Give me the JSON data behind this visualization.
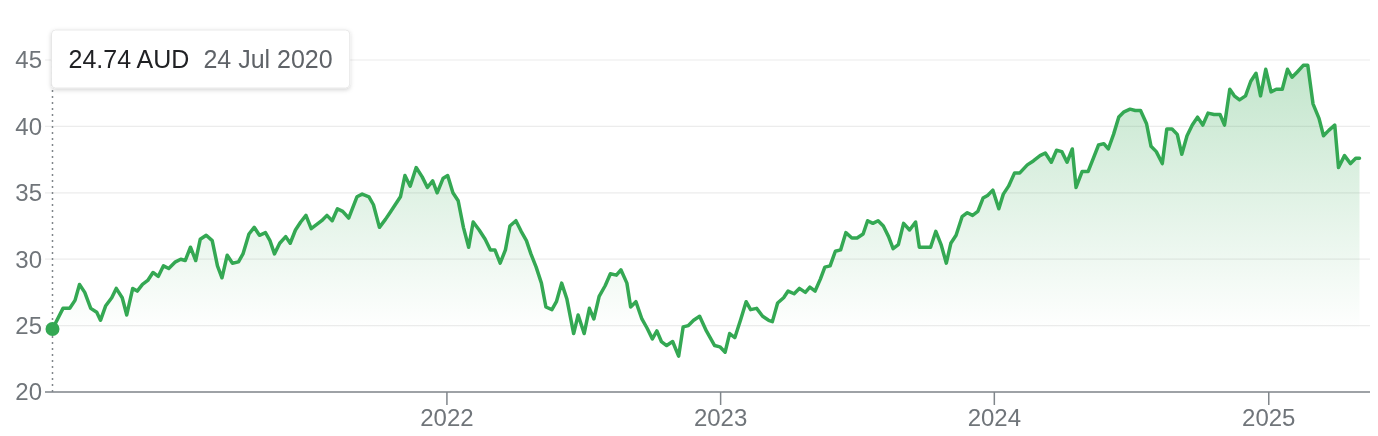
{
  "chart_data": {
    "type": "area",
    "color": "#34a853",
    "x": [
      "2020-07-24",
      "2020-08-07",
      "2020-08-16",
      "2020-08-23",
      "2020-08-29",
      "2020-09-05",
      "2020-09-13",
      "2020-09-21",
      "2020-09-26",
      "2020-10-03",
      "2020-10-11",
      "2020-10-17",
      "2020-10-25",
      "2020-10-31",
      "2020-11-08",
      "2020-11-14",
      "2020-11-21",
      "2020-11-28",
      "2020-12-05",
      "2020-12-12",
      "2020-12-19",
      "2020-12-26",
      "2021-01-04",
      "2021-01-11",
      "2021-01-17",
      "2021-01-24",
      "2021-01-31",
      "2021-02-06",
      "2021-02-14",
      "2021-02-22",
      "2021-03-01",
      "2021-03-07",
      "2021-03-14",
      "2021-03-21",
      "2021-03-29",
      "2021-04-04",
      "2021-04-12",
      "2021-04-19",
      "2021-04-26",
      "2021-05-04",
      "2021-05-10",
      "2021-05-16",
      "2021-05-23",
      "2021-05-31",
      "2021-06-06",
      "2021-06-13",
      "2021-06-20",
      "2021-06-27",
      "2021-07-04",
      "2021-07-11",
      "2021-07-18",
      "2021-07-25",
      "2021-08-01",
      "2021-08-08",
      "2021-08-15",
      "2021-08-23",
      "2021-09-03",
      "2021-09-10",
      "2021-09-19",
      "2021-09-25",
      "2021-10-03",
      "2021-10-11",
      "2021-10-17",
      "2021-10-24",
      "2021-10-31",
      "2021-11-06",
      "2021-11-13",
      "2021-11-21",
      "2021-11-29",
      "2021-12-06",
      "2021-12-13",
      "2021-12-19",
      "2021-12-27",
      "2022-01-02",
      "2022-01-09",
      "2022-01-16",
      "2022-01-23",
      "2022-01-30",
      "2022-02-05",
      "2022-02-13",
      "2022-02-21",
      "2022-02-28",
      "2022-03-06",
      "2022-03-13",
      "2022-03-20",
      "2022-03-26",
      "2022-04-03",
      "2022-04-10",
      "2022-04-17",
      "2022-04-23",
      "2022-04-30",
      "2022-05-07",
      "2022-05-13",
      "2022-05-21",
      "2022-05-27",
      "2022-06-03",
      "2022-06-10",
      "2022-06-19",
      "2022-06-25",
      "2022-07-03",
      "2022-07-10",
      "2022-07-16",
      "2022-07-23",
      "2022-07-31",
      "2022-08-07",
      "2022-08-15",
      "2022-08-21",
      "2022-08-29",
      "2022-09-03",
      "2022-09-10",
      "2022-09-18",
      "2022-09-25",
      "2022-10-02",
      "2022-10-08",
      "2022-10-14",
      "2022-10-21",
      "2022-10-29",
      "2022-11-06",
      "2022-11-12",
      "2022-11-19",
      "2022-11-26",
      "2022-12-04",
      "2022-12-13",
      "2022-12-24",
      "2022-12-31",
      "2023-01-07",
      "2023-01-13",
      "2023-01-20",
      "2023-01-28",
      "2023-02-04",
      "2023-02-10",
      "2023-02-18",
      "2023-02-26",
      "2023-03-06",
      "2023-03-11",
      "2023-03-18",
      "2023-03-26",
      "2023-04-01",
      "2023-04-09",
      "2023-04-16",
      "2023-04-24",
      "2023-04-30",
      "2023-05-07",
      "2023-05-14",
      "2023-05-20",
      "2023-05-27",
      "2023-06-03",
      "2023-06-10",
      "2023-06-17",
      "2023-06-25",
      "2023-07-02",
      "2023-07-10",
      "2023-07-16",
      "2023-07-23",
      "2023-07-30",
      "2023-08-06",
      "2023-08-13",
      "2023-08-19",
      "2023-08-26",
      "2023-09-02",
      "2023-09-10",
      "2023-09-18",
      "2023-09-23",
      "2023-10-01",
      "2023-10-08",
      "2023-10-15",
      "2023-10-22",
      "2023-10-29",
      "2023-11-04",
      "2023-11-11",
      "2023-11-19",
      "2023-11-26",
      "2023-12-03",
      "2023-12-10",
      "2023-12-17",
      "2023-12-23",
      "2023-12-30",
      "2024-01-07",
      "2024-01-13",
      "2024-01-20",
      "2024-01-28",
      "2024-02-04",
      "2024-02-14",
      "2024-02-22",
      "2024-03-02",
      "2024-03-09",
      "2024-03-17",
      "2024-03-24",
      "2024-03-31",
      "2024-04-07",
      "2024-04-14",
      "2024-04-19",
      "2024-04-27",
      "2024-05-05",
      "2024-05-12",
      "2024-05-19",
      "2024-05-26",
      "2024-06-01",
      "2024-06-08",
      "2024-06-15",
      "2024-06-22",
      "2024-06-30",
      "2024-07-07",
      "2024-07-14",
      "2024-07-22",
      "2024-07-28",
      "2024-08-04",
      "2024-08-12",
      "2024-08-18",
      "2024-08-25",
      "2024-09-01",
      "2024-09-07",
      "2024-09-14",
      "2024-09-21",
      "2024-09-28",
      "2024-10-05",
      "2024-10-12",
      "2024-10-20",
      "2024-10-28",
      "2024-11-03",
      "2024-11-10",
      "2024-11-16",
      "2024-11-23",
      "2024-12-01",
      "2024-12-08",
      "2024-12-15",
      "2024-12-21",
      "2024-12-28",
      "2025-01-04",
      "2025-01-11",
      "2025-01-19",
      "2025-01-26",
      "2025-02-01",
      "2025-02-08",
      "2025-02-16",
      "2025-02-22",
      "2025-03-01",
      "2025-03-09",
      "2025-03-15",
      "2025-03-22",
      "2025-03-30",
      "2025-04-04",
      "2025-04-12",
      "2025-04-20",
      "2025-04-27",
      "2025-05-02"
    ],
    "values": [
      24.74,
      26.3,
      26.3,
      26.9,
      28.1,
      27.5,
      26.3,
      26.0,
      25.4,
      26.5,
      27.1,
      27.8,
      27.1,
      25.8,
      27.8,
      27.6,
      28.1,
      28.4,
      29.0,
      28.7,
      29.5,
      29.3,
      29.8,
      30.0,
      29.9,
      30.9,
      29.9,
      31.5,
      31.8,
      31.4,
      29.5,
      28.6,
      30.3,
      29.7,
      29.8,
      30.4,
      31.9,
      32.4,
      31.8,
      32.0,
      31.4,
      30.4,
      31.2,
      31.7,
      31.2,
      32.2,
      32.8,
      33.3,
      32.3,
      32.6,
      32.9,
      33.3,
      32.9,
      33.8,
      33.6,
      33.1,
      34.7,
      34.9,
      34.7,
      34.1,
      32.4,
      33.0,
      33.5,
      34.1,
      34.7,
      36.3,
      35.5,
      36.9,
      36.2,
      35.4,
      35.9,
      35.0,
      36.1,
      36.3,
      35.0,
      34.4,
      32.4,
      30.9,
      32.8,
      32.2,
      31.5,
      30.7,
      30.7,
      29.7,
      30.7,
      32.5,
      32.9,
      32.1,
      31.4,
      30.4,
      29.4,
      28.2,
      26.4,
      26.2,
      26.8,
      28.2,
      27.0,
      24.4,
      25.8,
      24.4,
      26.3,
      25.5,
      27.2,
      28.0,
      28.9,
      28.8,
      29.2,
      28.2,
      26.4,
      26.8,
      25.5,
      24.8,
      24.0,
      24.6,
      23.8,
      23.5,
      23.8,
      22.7,
      24.9,
      25.0,
      25.4,
      25.7,
      24.6,
      23.5,
      23.4,
      23.0,
      24.4,
      24.1,
      25.5,
      26.8,
      26.2,
      26.3,
      25.7,
      25.4,
      25.3,
      26.7,
      27.1,
      27.6,
      27.4,
      27.8,
      27.5,
      27.9,
      27.6,
      28.5,
      29.4,
      29.5,
      30.6,
      30.7,
      32.0,
      31.6,
      31.6,
      31.9,
      32.9,
      32.7,
      32.9,
      32.5,
      31.7,
      30.8,
      31.1,
      32.7,
      32.2,
      32.8,
      30.9,
      30.9,
      30.9,
      32.1,
      31.1,
      29.7,
      31.2,
      31.8,
      33.2,
      33.5,
      33.3,
      33.6,
      34.6,
      34.8,
      35.2,
      33.8,
      34.9,
      35.5,
      36.5,
      36.5,
      37.1,
      37.4,
      37.8,
      38.0,
      37.3,
      38.2,
      38.1,
      37.3,
      38.3,
      35.4,
      36.6,
      36.6,
      37.6,
      38.6,
      38.7,
      38.3,
      39.4,
      40.7,
      41.1,
      41.3,
      41.2,
      41.2,
      40.2,
      38.5,
      38.1,
      37.2,
      39.8,
      39.8,
      39.4,
      37.9,
      39.3,
      40.1,
      40.7,
      40.1,
      41.0,
      40.9,
      40.9,
      40.1,
      42.8,
      42.3,
      42.0,
      42.3,
      43.4,
      44.0,
      42.3,
      44.3,
      42.6,
      42.8,
      42.8,
      44.3,
      43.7,
      44.1,
      44.6,
      44.6,
      41.7,
      40.6,
      39.3,
      39.7,
      40.1,
      36.9,
      37.8,
      37.2,
      37.6,
      37.6
    ],
    "xlim": [
      "2020-07-14",
      "2025-05-16"
    ],
    "xticks": [
      "2022",
      "2023",
      "2024",
      "2025"
    ],
    "ylim": [
      20,
      45
    ],
    "yticks": [
      20,
      25,
      30,
      35,
      40,
      45
    ],
    "grid": "y",
    "ref_lines": [
      {
        "axis": "x",
        "value": "2020-07-24",
        "line_style": "dotted",
        "color": "#80868b"
      }
    ],
    "annotations": [
      "24.74 AUD",
      "24 Jul 2020"
    ]
  }
}
